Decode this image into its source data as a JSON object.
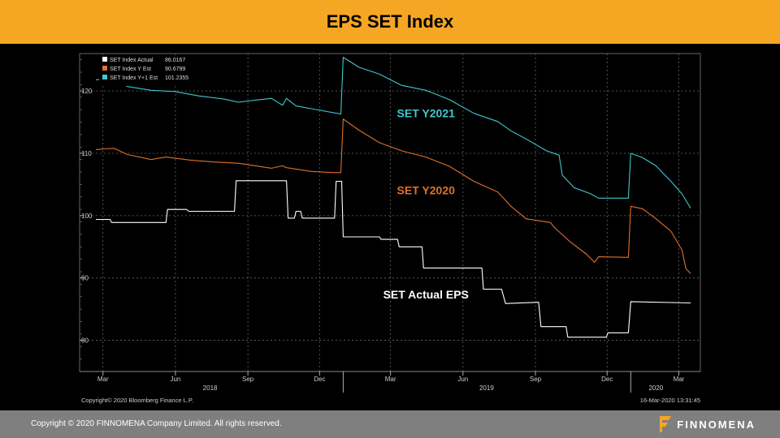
{
  "header": {
    "title": "EPS SET Index"
  },
  "footer": {
    "copyright": "Copyright © 2020 FINNOMENA Company Limited. All rights reserved.",
    "brand": "FINNOMENA"
  },
  "colors": {
    "header_bg": "#f5a623",
    "actual": "#ffffff",
    "y_est": "#e0702a",
    "y1_est": "#3fc8cf",
    "background": "#000000"
  },
  "chart_data": {
    "type": "line",
    "title": "",
    "ylabel": "",
    "ylim": [
      75,
      126
    ],
    "yticks": [
      80,
      90,
      100,
      110,
      120
    ],
    "grid": true,
    "legend_position": "top-left",
    "x_range": [
      "2018-02-20",
      "2020-03-16"
    ],
    "month_ticks": [
      {
        "label": "Mar",
        "date": "2018-03-01"
      },
      {
        "label": "Jun",
        "date": "2018-06-01"
      },
      {
        "label": "Sep",
        "date": "2018-09-01"
      },
      {
        "label": "Dec",
        "date": "2018-12-01"
      },
      {
        "label": "Mar",
        "date": "2019-03-01"
      },
      {
        "label": "Jun",
        "date": "2019-06-01"
      },
      {
        "label": "Sep",
        "date": "2019-09-01"
      },
      {
        "label": "Dec",
        "date": "2019-12-01"
      },
      {
        "label": "Mar",
        "date": "2020-03-01"
      }
    ],
    "year_labels": [
      {
        "label": "2018",
        "date": "2018-07-15"
      },
      {
        "label": "2019",
        "date": "2019-07-01"
      },
      {
        "label": "2020",
        "date": "2020-02-01"
      }
    ],
    "year_dividers": [
      "2018-12-31",
      "2019-12-31"
    ],
    "series": [
      {
        "name": "SET Index Actual",
        "legend_value": "86.0167",
        "color": "#ffffff",
        "annotation": "SET Actual EPS",
        "annotation_color": "#ffffff",
        "annotation_at": {
          "date": "2019-04-15",
          "value": 86.7
        },
        "points": [
          [
            "2018-02-20",
            99.4
          ],
          [
            "2018-03-10",
            99.4
          ],
          [
            "2018-03-12",
            98.9
          ],
          [
            "2018-05-20",
            98.9
          ],
          [
            "2018-05-22",
            101.0
          ],
          [
            "2018-06-15",
            101.0
          ],
          [
            "2018-06-18",
            100.7
          ],
          [
            "2018-08-15",
            100.7
          ],
          [
            "2018-08-17",
            105.6
          ],
          [
            "2018-10-20",
            105.6
          ],
          [
            "2018-10-22",
            99.6
          ],
          [
            "2018-10-30",
            99.6
          ],
          [
            "2018-11-01",
            100.7
          ],
          [
            "2018-11-07",
            100.7
          ],
          [
            "2018-11-09",
            99.6
          ],
          [
            "2018-12-20",
            99.6
          ],
          [
            "2018-12-22",
            105.5
          ],
          [
            "2018-12-29",
            105.5
          ],
          [
            "2018-12-31",
            96.6
          ],
          [
            "2019-02-15",
            96.6
          ],
          [
            "2019-02-17",
            96.2
          ],
          [
            "2019-03-10",
            96.2
          ],
          [
            "2019-03-12",
            95.0
          ],
          [
            "2019-04-10",
            95.0
          ],
          [
            "2019-04-12",
            91.6
          ],
          [
            "2019-06-25",
            91.6
          ],
          [
            "2019-06-27",
            88.2
          ],
          [
            "2019-07-20",
            88.2
          ],
          [
            "2019-07-25",
            85.9
          ],
          [
            "2019-09-05",
            86.1
          ],
          [
            "2019-09-08",
            82.2
          ],
          [
            "2019-10-10",
            82.2
          ],
          [
            "2019-10-12",
            80.5
          ],
          [
            "2019-11-30",
            80.5
          ],
          [
            "2019-12-02",
            81.2
          ],
          [
            "2019-12-28",
            81.2
          ],
          [
            "2019-12-31",
            86.2
          ],
          [
            "2020-03-16",
            86.0
          ]
        ]
      },
      {
        "name": "SET Index Y Est",
        "legend_value": "90.6799",
        "color": "#e0702a",
        "annotation": "SET Y2020",
        "annotation_color": "#e0702a",
        "annotation_at": {
          "date": "2019-04-15",
          "value": 103.4
        },
        "points": [
          [
            "2018-02-20",
            110.6
          ],
          [
            "2018-03-15",
            110.8
          ],
          [
            "2018-04-01",
            109.8
          ],
          [
            "2018-05-01",
            109.0
          ],
          [
            "2018-05-20",
            109.4
          ],
          [
            "2018-06-20",
            108.9
          ],
          [
            "2018-07-20",
            108.6
          ],
          [
            "2018-08-20",
            108.4
          ],
          [
            "2018-09-15",
            107.9
          ],
          [
            "2018-10-01",
            107.6
          ],
          [
            "2018-10-15",
            108.0
          ],
          [
            "2018-10-20",
            107.7
          ],
          [
            "2018-11-20",
            107.1
          ],
          [
            "2018-12-20",
            106.9
          ],
          [
            "2018-12-28",
            106.9
          ],
          [
            "2018-12-31",
            115.5
          ],
          [
            "2019-01-20",
            113.7
          ],
          [
            "2019-02-15",
            111.7
          ],
          [
            "2019-03-15",
            110.4
          ],
          [
            "2019-04-15",
            109.4
          ],
          [
            "2019-05-15",
            107.9
          ],
          [
            "2019-06-15",
            105.5
          ],
          [
            "2019-07-15",
            103.8
          ],
          [
            "2019-08-01",
            101.5
          ],
          [
            "2019-08-20",
            99.5
          ],
          [
            "2019-09-20",
            98.9
          ],
          [
            "2019-09-25",
            98.1
          ],
          [
            "2019-10-15",
            95.8
          ],
          [
            "2019-11-05",
            93.8
          ],
          [
            "2019-11-15",
            92.5
          ],
          [
            "2019-11-20",
            93.4
          ],
          [
            "2019-12-28",
            93.3
          ],
          [
            "2019-12-31",
            101.5
          ],
          [
            "2020-01-15",
            101.1
          ],
          [
            "2020-02-01",
            99.5
          ],
          [
            "2020-02-20",
            97.5
          ],
          [
            "2020-03-05",
            94.5
          ],
          [
            "2020-03-10",
            91.5
          ],
          [
            "2020-03-16",
            90.7
          ]
        ]
      },
      {
        "name": "SET Index Y+1 Est",
        "legend_value": "101.2355",
        "color": "#3fc8cf",
        "annotation": "SET Y2021",
        "annotation_color": "#3fc8cf",
        "annotation_at": {
          "date": "2019-04-15",
          "value": 115.8
        },
        "points": [
          [
            "2018-02-20",
            121.8
          ],
          [
            "2018-03-15",
            121.9
          ],
          [
            "2018-04-01",
            120.7
          ],
          [
            "2018-05-01",
            120.1
          ],
          [
            "2018-06-01",
            119.9
          ],
          [
            "2018-07-01",
            119.2
          ],
          [
            "2018-08-01",
            118.7
          ],
          [
            "2018-08-20",
            118.2
          ],
          [
            "2018-09-15",
            118.6
          ],
          [
            "2018-10-01",
            118.8
          ],
          [
            "2018-10-15",
            117.7
          ],
          [
            "2018-10-20",
            118.8
          ],
          [
            "2018-11-01",
            117.6
          ],
          [
            "2018-12-28",
            116.3
          ],
          [
            "2018-12-31",
            125.4
          ],
          [
            "2019-01-20",
            123.8
          ],
          [
            "2019-02-15",
            122.7
          ],
          [
            "2019-03-15",
            120.9
          ],
          [
            "2019-04-15",
            120.1
          ],
          [
            "2019-05-15",
            118.6
          ],
          [
            "2019-06-15",
            116.4
          ],
          [
            "2019-07-15",
            115.1
          ],
          [
            "2019-08-01",
            113.6
          ],
          [
            "2019-08-20",
            112.3
          ],
          [
            "2019-09-15",
            110.4
          ],
          [
            "2019-10-01",
            109.7
          ],
          [
            "2019-10-05",
            106.5
          ],
          [
            "2019-10-20",
            104.5
          ],
          [
            "2019-11-10",
            103.5
          ],
          [
            "2019-11-20",
            102.8
          ],
          [
            "2019-12-28",
            102.8
          ],
          [
            "2019-12-31",
            110.0
          ],
          [
            "2020-01-15",
            109.3
          ],
          [
            "2020-02-01",
            108.0
          ],
          [
            "2020-02-20",
            105.5
          ],
          [
            "2020-03-05",
            103.5
          ],
          [
            "2020-03-16",
            101.2
          ]
        ]
      }
    ],
    "source_note": "Copyright© 2020 Bloomberg Finance L.P.",
    "timestamp_note": "16-Mar-2020 13:31:45"
  }
}
